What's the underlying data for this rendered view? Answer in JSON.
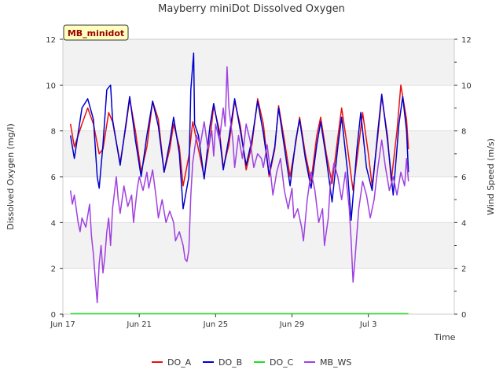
{
  "chart_data": {
    "type": "line",
    "title": "Mayberry miniDot Dissolved Oxygen",
    "xlabel": "Time",
    "ylabel": "Dissolved Oxygen (mg/l)",
    "y2label": "Wind Speed (m/s)",
    "station_tag": "MB_minidot",
    "x_start": "Jun 17",
    "xlim_days": [
      0,
      20.5
    ],
    "ylim": [
      0,
      12
    ],
    "y2lim": [
      0,
      12
    ],
    "yticks": [
      0,
      2,
      4,
      6,
      8,
      10,
      12
    ],
    "y2ticks": [
      0,
      2,
      4,
      6,
      8,
      10,
      12
    ],
    "xticks": [
      {
        "day": 0,
        "label": "Jun 17"
      },
      {
        "day": 4,
        "label": "Jun 21"
      },
      {
        "day": 8,
        "label": "Jun 25"
      },
      {
        "day": 12,
        "label": "Jun 29"
      },
      {
        "day": 16,
        "label": "Jul 3"
      }
    ],
    "grid": true,
    "background_bands": true,
    "legend_position": "bottom",
    "series": [
      {
        "name": "DO_A",
        "color": "#e81010",
        "axis": "left",
        "points": [
          [
            0.4,
            8.3
          ],
          [
            0.6,
            7.3
          ],
          [
            1.0,
            8.3
          ],
          [
            1.3,
            9.0
          ],
          [
            1.6,
            8.3
          ],
          [
            1.9,
            7.0
          ],
          [
            2.1,
            7.2
          ],
          [
            2.4,
            8.8
          ],
          [
            2.6,
            8.4
          ],
          [
            3.0,
            6.6
          ],
          [
            3.3,
            8.2
          ],
          [
            3.5,
            9.4
          ],
          [
            3.8,
            8.0
          ],
          [
            4.1,
            6.2
          ],
          [
            4.4,
            7.3
          ],
          [
            4.7,
            9.3
          ],
          [
            5.0,
            8.5
          ],
          [
            5.3,
            6.2
          ],
          [
            5.6,
            7.2
          ],
          [
            5.8,
            8.3
          ],
          [
            6.1,
            7.3
          ],
          [
            6.3,
            5.6
          ],
          [
            6.6,
            6.9
          ],
          [
            6.8,
            8.4
          ],
          [
            7.1,
            7.2
          ],
          [
            7.4,
            6.0
          ],
          [
            7.7,
            7.6
          ],
          [
            7.9,
            9.1
          ],
          [
            8.2,
            8.0
          ],
          [
            8.4,
            6.4
          ],
          [
            8.7,
            7.4
          ],
          [
            9.0,
            9.3
          ],
          [
            9.3,
            8.2
          ],
          [
            9.6,
            6.3
          ],
          [
            9.9,
            7.4
          ],
          [
            10.2,
            9.4
          ],
          [
            10.5,
            8.3
          ],
          [
            10.8,
            6.0
          ],
          [
            11.1,
            7.2
          ],
          [
            11.3,
            9.1
          ],
          [
            11.6,
            7.6
          ],
          [
            11.9,
            6.0
          ],
          [
            12.2,
            7.5
          ],
          [
            12.4,
            8.6
          ],
          [
            12.7,
            7.0
          ],
          [
            13.0,
            5.8
          ],
          [
            13.3,
            7.8
          ],
          [
            13.5,
            8.6
          ],
          [
            13.8,
            7.0
          ],
          [
            14.1,
            5.7
          ],
          [
            14.4,
            7.7
          ],
          [
            14.6,
            9.0
          ],
          [
            14.9,
            7.3
          ],
          [
            15.2,
            5.4
          ],
          [
            15.5,
            7.4
          ],
          [
            15.7,
            8.8
          ],
          [
            16.0,
            7.0
          ],
          [
            16.2,
            5.6
          ],
          [
            16.5,
            7.8
          ],
          [
            16.7,
            9.5
          ],
          [
            17.0,
            7.8
          ],
          [
            17.2,
            5.8
          ],
          [
            17.5,
            8.0
          ],
          [
            17.7,
            10.0
          ],
          [
            18.0,
            8.5
          ],
          [
            18.1,
            7.2
          ]
        ]
      },
      {
        "name": "DO_B",
        "color": "#0000cc",
        "axis": "left",
        "points": [
          [
            0.4,
            7.8
          ],
          [
            0.6,
            6.8
          ],
          [
            1.0,
            9.0
          ],
          [
            1.3,
            9.4
          ],
          [
            1.6,
            8.5
          ],
          [
            1.8,
            6.0
          ],
          [
            1.9,
            5.5
          ],
          [
            2.1,
            7.4
          ],
          [
            2.3,
            9.8
          ],
          [
            2.5,
            10.0
          ],
          [
            2.6,
            8.5
          ],
          [
            3.0,
            6.5
          ],
          [
            3.3,
            8.3
          ],
          [
            3.5,
            9.5
          ],
          [
            3.8,
            7.6
          ],
          [
            4.1,
            6.0
          ],
          [
            4.4,
            7.8
          ],
          [
            4.7,
            9.3
          ],
          [
            5.0,
            8.2
          ],
          [
            5.3,
            6.2
          ],
          [
            5.6,
            7.5
          ],
          [
            5.8,
            8.6
          ],
          [
            6.1,
            7.0
          ],
          [
            6.3,
            4.6
          ],
          [
            6.6,
            6.0
          ],
          [
            6.7,
            9.8
          ],
          [
            6.85,
            11.4
          ],
          [
            6.9,
            8.3
          ],
          [
            7.1,
            7.8
          ],
          [
            7.4,
            5.9
          ],
          [
            7.7,
            8.2
          ],
          [
            7.9,
            9.2
          ],
          [
            8.2,
            7.8
          ],
          [
            8.4,
            6.3
          ],
          [
            8.7,
            7.7
          ],
          [
            9.0,
            9.4
          ],
          [
            9.3,
            8.0
          ],
          [
            9.6,
            6.5
          ],
          [
            9.9,
            7.6
          ],
          [
            10.2,
            9.3
          ],
          [
            10.5,
            7.9
          ],
          [
            10.8,
            6.1
          ],
          [
            11.1,
            7.3
          ],
          [
            11.3,
            9.0
          ],
          [
            11.6,
            7.3
          ],
          [
            11.9,
            5.6
          ],
          [
            12.2,
            7.6
          ],
          [
            12.4,
            8.5
          ],
          [
            12.7,
            6.8
          ],
          [
            13.0,
            5.5
          ],
          [
            13.3,
            7.4
          ],
          [
            13.5,
            8.4
          ],
          [
            13.8,
            6.8
          ],
          [
            14.1,
            4.9
          ],
          [
            14.4,
            7.3
          ],
          [
            14.6,
            8.6
          ],
          [
            14.9,
            6.3
          ],
          [
            15.1,
            4.1
          ],
          [
            15.4,
            7.2
          ],
          [
            15.6,
            8.8
          ],
          [
            15.9,
            6.4
          ],
          [
            16.2,
            5.4
          ],
          [
            16.5,
            8.0
          ],
          [
            16.7,
            9.6
          ],
          [
            17.0,
            7.6
          ],
          [
            17.3,
            5.2
          ],
          [
            17.6,
            8.3
          ],
          [
            17.8,
            9.5
          ],
          [
            18.0,
            8.0
          ],
          [
            18.1,
            6.2
          ]
        ]
      },
      {
        "name": "DO_C",
        "color": "#22dd22",
        "axis": "left",
        "points": [
          [
            0.4,
            0.02
          ],
          [
            18.1,
            0.02
          ]
        ]
      },
      {
        "name": "MB_WS",
        "color": "#a040e0",
        "axis": "right",
        "points": [
          [
            0.4,
            5.4
          ],
          [
            0.5,
            4.8
          ],
          [
            0.6,
            5.2
          ],
          [
            0.8,
            4.0
          ],
          [
            0.9,
            3.6
          ],
          [
            1.0,
            4.2
          ],
          [
            1.2,
            3.8
          ],
          [
            1.4,
            4.8
          ],
          [
            1.5,
            3.4
          ],
          [
            1.6,
            2.6
          ],
          [
            1.7,
            1.5
          ],
          [
            1.8,
            0.5
          ],
          [
            1.9,
            2.2
          ],
          [
            2.0,
            3.0
          ],
          [
            2.1,
            1.8
          ],
          [
            2.2,
            2.5
          ],
          [
            2.3,
            3.6
          ],
          [
            2.4,
            4.2
          ],
          [
            2.5,
            3.0
          ],
          [
            2.6,
            4.6
          ],
          [
            2.8,
            6.0
          ],
          [
            2.9,
            5.0
          ],
          [
            3.0,
            4.4
          ],
          [
            3.2,
            5.6
          ],
          [
            3.4,
            4.7
          ],
          [
            3.6,
            5.2
          ],
          [
            3.7,
            4.0
          ],
          [
            3.9,
            5.5
          ],
          [
            4.0,
            6.0
          ],
          [
            4.2,
            5.4
          ],
          [
            4.4,
            6.2
          ],
          [
            4.5,
            5.5
          ],
          [
            4.7,
            6.3
          ],
          [
            4.9,
            5.0
          ],
          [
            5.0,
            4.2
          ],
          [
            5.2,
            5.0
          ],
          [
            5.4,
            4.0
          ],
          [
            5.6,
            4.5
          ],
          [
            5.8,
            4.0
          ],
          [
            5.9,
            3.2
          ],
          [
            6.1,
            3.6
          ],
          [
            6.3,
            3.0
          ],
          [
            6.4,
            2.4
          ],
          [
            6.5,
            2.3
          ],
          [
            6.6,
            2.8
          ],
          [
            6.7,
            5.2
          ],
          [
            6.8,
            6.6
          ],
          [
            7.0,
            7.8
          ],
          [
            7.2,
            7.4
          ],
          [
            7.4,
            8.4
          ],
          [
            7.6,
            7.2
          ],
          [
            7.8,
            8.0
          ],
          [
            7.9,
            6.9
          ],
          [
            8.0,
            8.3
          ],
          [
            8.2,
            7.6
          ],
          [
            8.4,
            9.0
          ],
          [
            8.5,
            8.2
          ],
          [
            8.6,
            10.8
          ],
          [
            8.7,
            9.0
          ],
          [
            8.9,
            7.6
          ],
          [
            9.0,
            6.4
          ],
          [
            9.2,
            7.8
          ],
          [
            9.4,
            6.8
          ],
          [
            9.6,
            8.3
          ],
          [
            9.8,
            7.6
          ],
          [
            10.0,
            6.4
          ],
          [
            10.2,
            7.0
          ],
          [
            10.4,
            6.8
          ],
          [
            10.5,
            6.4
          ],
          [
            10.7,
            7.4
          ],
          [
            10.9,
            6.0
          ],
          [
            11.0,
            5.2
          ],
          [
            11.2,
            6.2
          ],
          [
            11.4,
            6.8
          ],
          [
            11.6,
            5.4
          ],
          [
            11.8,
            4.6
          ],
          [
            12.0,
            5.5
          ],
          [
            12.1,
            4.2
          ],
          [
            12.3,
            4.6
          ],
          [
            12.5,
            3.8
          ],
          [
            12.6,
            3.2
          ],
          [
            12.8,
            5.0
          ],
          [
            13.0,
            6.2
          ],
          [
            13.2,
            5.4
          ],
          [
            13.4,
            4.0
          ],
          [
            13.6,
            4.6
          ],
          [
            13.7,
            3.0
          ],
          [
            13.9,
            4.2
          ],
          [
            14.0,
            5.6
          ],
          [
            14.2,
            6.6
          ],
          [
            14.4,
            6.0
          ],
          [
            14.6,
            5.0
          ],
          [
            14.8,
            6.2
          ],
          [
            15.0,
            4.6
          ],
          [
            15.1,
            3.2
          ],
          [
            15.2,
            1.4
          ],
          [
            15.3,
            2.4
          ],
          [
            15.5,
            4.6
          ],
          [
            15.7,
            5.8
          ],
          [
            15.9,
            5.2
          ],
          [
            16.1,
            4.2
          ],
          [
            16.3,
            5.0
          ],
          [
            16.5,
            6.4
          ],
          [
            16.7,
            7.6
          ],
          [
            16.9,
            6.4
          ],
          [
            17.1,
            5.4
          ],
          [
            17.3,
            6.0
          ],
          [
            17.5,
            5.2
          ],
          [
            17.7,
            6.2
          ],
          [
            17.9,
            5.6
          ],
          [
            18.0,
            6.8
          ],
          [
            18.1,
            5.8
          ]
        ]
      }
    ]
  }
}
